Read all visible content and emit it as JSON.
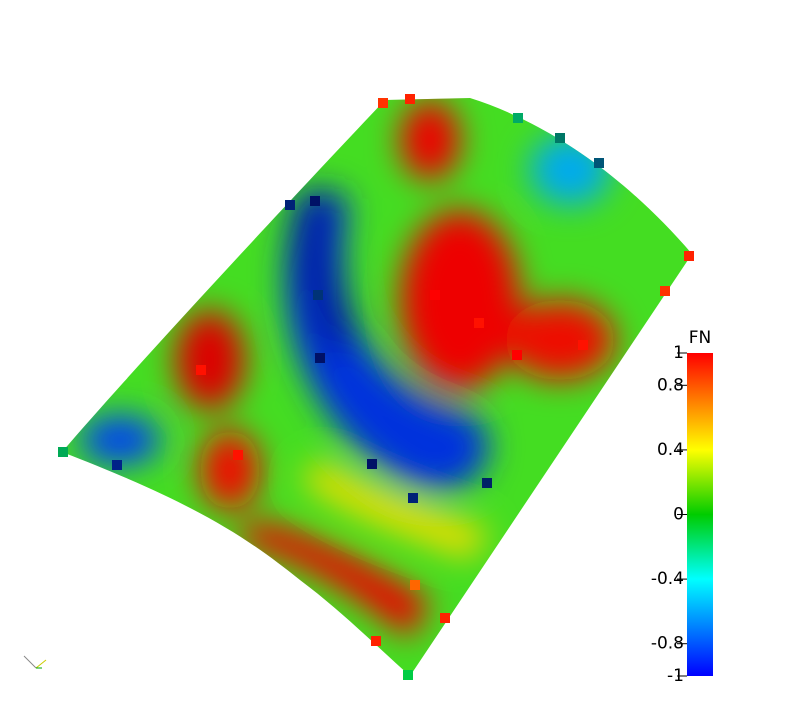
{
  "legend": {
    "title": "FN",
    "range": [
      -1,
      1
    ],
    "ticks": [
      1,
      0.8,
      0.4,
      0,
      -0.4,
      -0.8,
      -1
    ]
  }
}
